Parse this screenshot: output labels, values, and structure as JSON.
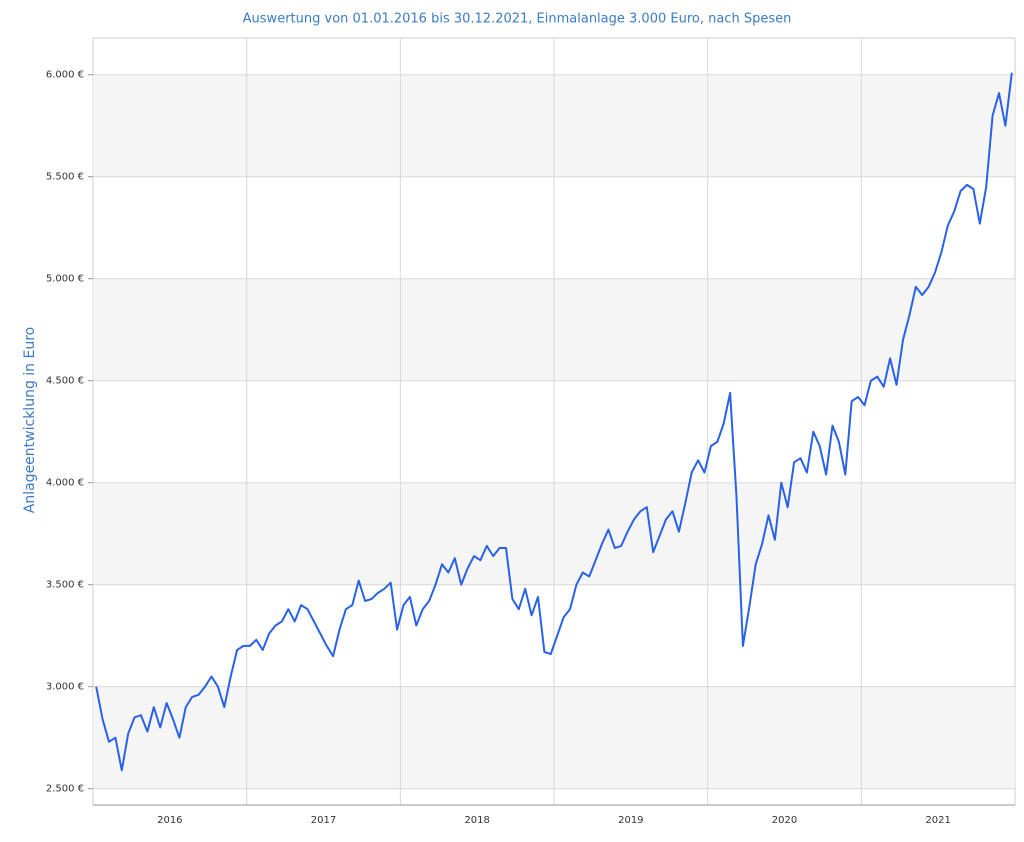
{
  "chart_data": {
    "type": "line",
    "title": "Auswertung von 01.01.2016 bis 30.12.2021, Einmalanlage 3.000 Euro, nach Spesen",
    "y_label": "Anlageentwicklung  in Euro",
    "categories": [
      null,
      null,
      null,
      null,
      null,
      null,
      null,
      null,
      null,
      null,
      null,
      null,
      "2016",
      null,
      null,
      null,
      null,
      null,
      null,
      null,
      null,
      null,
      null,
      null,
      null,
      null,
      null,
      null,
      null,
      null,
      null,
      null,
      null,
      null,
      null,
      null,
      "2017",
      null,
      null,
      null,
      null,
      null,
      null,
      null,
      null,
      null,
      null,
      null,
      null,
      null,
      null,
      null,
      null,
      null,
      null,
      null,
      null,
      null,
      null,
      null,
      "2018",
      null,
      null,
      null,
      null,
      null,
      null,
      null,
      null,
      null,
      null,
      null,
      null,
      null,
      null,
      null,
      null,
      null,
      null,
      null,
      null,
      null,
      null,
      null,
      "2019",
      null,
      null,
      null,
      null,
      null,
      null,
      null,
      null,
      null,
      null,
      null,
      null,
      null,
      null,
      null,
      null,
      null,
      null,
      null,
      null,
      null,
      null,
      null,
      "2020",
      null,
      null,
      null,
      null,
      null,
      null,
      null,
      null,
      null,
      null,
      null,
      null,
      null,
      null,
      null,
      null,
      null,
      null,
      null,
      null,
      null,
      null,
      null,
      "2021",
      null,
      null,
      null,
      null,
      null,
      null,
      null,
      null,
      null,
      null,
      null
    ],
    "values": [
      3000,
      2840,
      2730,
      2750,
      2590,
      2770,
      2850,
      2860,
      2780,
      2900,
      2800,
      2920,
      2840,
      2750,
      2900,
      2950,
      2960,
      3000,
      3050,
      3000,
      2900,
      3050,
      3180,
      3200,
      3200,
      3230,
      3180,
      3260,
      3300,
      3320,
      3380,
      3320,
      3400,
      3380,
      3320,
      3260,
      3200,
      3150,
      3280,
      3380,
      3400,
      3520,
      3420,
      3430,
      3460,
      3480,
      3510,
      3280,
      3400,
      3440,
      3300,
      3380,
      3420,
      3500,
      3600,
      3560,
      3630,
      3500,
      3580,
      3640,
      3620,
      3690,
      3640,
      3680,
      3680,
      3430,
      3380,
      3480,
      3350,
      3440,
      3170,
      3160,
      3250,
      3340,
      3380,
      3500,
      3560,
      3540,
      3620,
      3700,
      3770,
      3680,
      3690,
      3760,
      3820,
      3860,
      3880,
      3660,
      3740,
      3820,
      3860,
      3760,
      3900,
      4050,
      4110,
      4050,
      4180,
      4200,
      4290,
      4440,
      3930,
      3200,
      3390,
      3600,
      3700,
      3840,
      3720,
      4000,
      3880,
      4100,
      4120,
      4050,
      4250,
      4180,
      4040,
      4280,
      4200,
      4040,
      4400,
      4420,
      4380,
      4500,
      4520,
      4470,
      4610,
      4480,
      4700,
      4820,
      4960,
      4920,
      4960,
      5030,
      5130,
      5260,
      5330,
      5430,
      5460,
      5440,
      5270,
      5450,
      5800,
      5910,
      5750,
      6010
    ],
    "color": "#2962e8",
    "ylim": [
      2420,
      6180
    ],
    "yticks": [
      {
        "value": 2500,
        "label": "2.500 €"
      },
      {
        "value": 3000,
        "label": "3.000 €"
      },
      {
        "value": 3500,
        "label": "3.500 €"
      },
      {
        "value": 4000,
        "label": "4.000 €"
      },
      {
        "value": 4500,
        "label": "4.500 €"
      },
      {
        "value": 5000,
        "label": "5.000 €"
      },
      {
        "value": 5500,
        "label": "5.500 €"
      },
      {
        "value": 6000,
        "label": "6.000 €"
      }
    ],
    "grid": true
  }
}
